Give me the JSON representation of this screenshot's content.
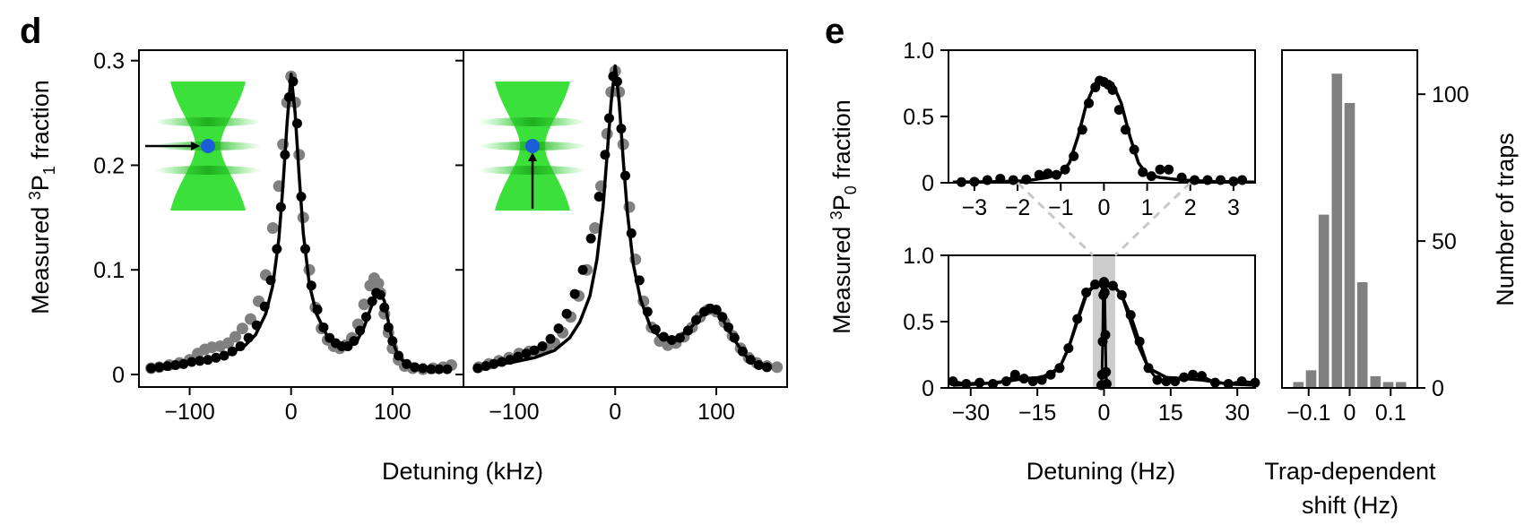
{
  "panels": {
    "d": "d",
    "e": "e"
  },
  "labels": {
    "d_ylabel_pre": "Measured ",
    "d_ylabel_sup": "3",
    "d_ylabel_mid": "P",
    "d_ylabel_sub": "1",
    "d_ylabel_post": " fraction",
    "d_xlabel": "Detuning (kHz)",
    "e_ylabel_pre": "Measured ",
    "e_ylabel_sup": "3",
    "e_ylabel_mid": "P",
    "e_ylabel_sub": "0",
    "e_ylabel_post": " fraction",
    "e_xlabel": "Detuning (Hz)",
    "hist_ylabel": "Number of traps",
    "hist_xlabel_line1": "Trap-dependent",
    "hist_xlabel_line2": "shift (Hz)"
  },
  "colors": {
    "fit_black": "#000000",
    "raw_gray": "#808080",
    "bar_gray": "#808080",
    "beam_green": "#3be03b",
    "atom_blue": "#1a5fd6",
    "dashed": "#c8c8c8",
    "shade": "#cccccc"
  },
  "icons": [
    "tweezer-axial-arrow-icon",
    "tweezer-radial-arrow-icon"
  ],
  "chart_data": [
    {
      "id": "d-left",
      "type": "line",
      "xlim": [
        -150,
        170
      ],
      "ylim": [
        -0.012,
        0.31
      ],
      "xticks": [
        "−100",
        "0",
        "100"
      ],
      "xtick_values": [
        -100,
        0,
        100
      ],
      "yticks": [
        "0",
        "0.1",
        "0.2",
        "0.3"
      ],
      "ytick_values": [
        0,
        0.1,
        0.2,
        0.3
      ],
      "series": [
        {
          "role": "raw-gray",
          "x": [
            -138,
            -130,
            -120,
            -110,
            -100,
            -92,
            -85,
            -78,
            -70,
            -62,
            -55,
            -48,
            -40,
            -32,
            -25,
            -18,
            -12,
            -8,
            -4,
            0,
            4,
            8,
            12,
            18,
            24,
            30,
            36,
            42,
            48,
            54,
            60,
            66,
            72,
            78,
            82,
            86,
            88,
            92,
            96,
            100,
            106,
            112,
            120,
            130,
            140,
            150,
            158
          ],
          "y": [
            0.006,
            0.007,
            0.009,
            0.011,
            0.014,
            0.02,
            0.024,
            0.026,
            0.027,
            0.03,
            0.036,
            0.044,
            0.053,
            0.07,
            0.095,
            0.14,
            0.18,
            0.22,
            0.26,
            0.285,
            0.26,
            0.21,
            0.15,
            0.1,
            0.064,
            0.044,
            0.033,
            0.027,
            0.025,
            0.028,
            0.035,
            0.048,
            0.067,
            0.085,
            0.092,
            0.087,
            0.078,
            0.058,
            0.04,
            0.025,
            0.014,
            0.008,
            0.006,
            0.005,
            0.006,
            0.007,
            0.009
          ]
        },
        {
          "role": "fit-black",
          "x": [
            -140,
            -120,
            -100,
            -80,
            -60,
            -45,
            -35,
            -25,
            -18,
            -12,
            -8,
            -4,
            0,
            4,
            8,
            12,
            18,
            25,
            35,
            45,
            55,
            65,
            72,
            78,
            84,
            88,
            92,
            96,
            100,
            106,
            115,
            125,
            140,
            155
          ],
          "y": [
            0.006,
            0.008,
            0.011,
            0.014,
            0.02,
            0.028,
            0.038,
            0.058,
            0.085,
            0.13,
            0.18,
            0.24,
            0.287,
            0.25,
            0.19,
            0.135,
            0.086,
            0.058,
            0.038,
            0.03,
            0.027,
            0.032,
            0.045,
            0.062,
            0.076,
            0.078,
            0.07,
            0.05,
            0.032,
            0.017,
            0.009,
            0.006,
            0.005,
            0.005
          ]
        },
        {
          "role": "points-black",
          "x": [
            -138,
            -130,
            -122,
            -114,
            -106,
            -98,
            -90,
            -82,
            -74,
            -66,
            -58,
            -50,
            -42,
            -34,
            -26,
            -20,
            -14,
            -10,
            -6,
            -2,
            2,
            6,
            10,
            14,
            20,
            26,
            32,
            38,
            44,
            50,
            56,
            62,
            68,
            74,
            80,
            84,
            88,
            92,
            96,
            100,
            106,
            114,
            122,
            130,
            138,
            146,
            154
          ],
          "y": [
            0.006,
            0.007,
            0.008,
            0.009,
            0.01,
            0.012,
            0.013,
            0.014,
            0.016,
            0.018,
            0.022,
            0.027,
            0.035,
            0.047,
            0.065,
            0.09,
            0.12,
            0.16,
            0.21,
            0.265,
            0.28,
            0.24,
            0.17,
            0.12,
            0.085,
            0.062,
            0.045,
            0.035,
            0.03,
            0.027,
            0.027,
            0.032,
            0.042,
            0.055,
            0.07,
            0.078,
            0.076,
            0.064,
            0.045,
            0.032,
            0.018,
            0.01,
            0.007,
            0.006,
            0.005,
            0.005,
            0.005
          ]
        }
      ]
    },
    {
      "id": "d-right",
      "type": "line",
      "xlim": [
        -150,
        170
      ],
      "ylim": [
        -0.012,
        0.31
      ],
      "xticks": [
        "−100",
        "0",
        "100"
      ],
      "xtick_values": [
        -100,
        0,
        100
      ],
      "series": [
        {
          "role": "raw-gray",
          "x": [
            -135,
            -125,
            -115,
            -105,
            -95,
            -85,
            -75,
            -68,
            -60,
            -52,
            -44,
            -36,
            -28,
            -20,
            -14,
            -8,
            -4,
            0,
            4,
            8,
            14,
            20,
            28,
            36,
            44,
            52,
            60,
            68,
            76,
            84,
            92,
            100,
            108,
            116,
            124,
            132,
            140,
            150,
            160
          ],
          "y": [
            0.007,
            0.01,
            0.013,
            0.016,
            0.02,
            0.022,
            0.022,
            0.025,
            0.03,
            0.04,
            0.055,
            0.075,
            0.1,
            0.14,
            0.18,
            0.23,
            0.27,
            0.29,
            0.27,
            0.22,
            0.16,
            0.11,
            0.07,
            0.045,
            0.032,
            0.028,
            0.03,
            0.036,
            0.045,
            0.055,
            0.062,
            0.06,
            0.05,
            0.037,
            0.025,
            0.016,
            0.011,
            0.008,
            0.007
          ]
        },
        {
          "role": "fit-black",
          "x": [
            -140,
            -120,
            -100,
            -80,
            -60,
            -45,
            -35,
            -25,
            -18,
            -12,
            -8,
            -4,
            0,
            4,
            8,
            12,
            18,
            25,
            35,
            45,
            55,
            65,
            75,
            85,
            92,
            98,
            105,
            112,
            120,
            130,
            140,
            155
          ],
          "y": [
            0.006,
            0.009,
            0.012,
            0.016,
            0.023,
            0.035,
            0.05,
            0.075,
            0.11,
            0.16,
            0.21,
            0.26,
            0.295,
            0.26,
            0.205,
            0.155,
            0.105,
            0.072,
            0.045,
            0.035,
            0.033,
            0.037,
            0.045,
            0.056,
            0.062,
            0.062,
            0.055,
            0.043,
            0.03,
            0.017,
            0.01,
            0.007
          ]
        },
        {
          "role": "points-black",
          "x": [
            -136,
            -128,
            -120,
            -112,
            -104,
            -96,
            -88,
            -80,
            -72,
            -64,
            -56,
            -48,
            -40,
            -32,
            -24,
            -16,
            -10,
            -6,
            -2,
            2,
            6,
            10,
            16,
            24,
            32,
            40,
            48,
            56,
            64,
            72,
            80,
            88,
            94,
            100,
            106,
            112,
            118,
            126,
            134,
            142,
            150
          ],
          "y": [
            0.006,
            0.008,
            0.01,
            0.012,
            0.014,
            0.017,
            0.02,
            0.023,
            0.027,
            0.034,
            0.044,
            0.058,
            0.077,
            0.1,
            0.13,
            0.17,
            0.21,
            0.245,
            0.285,
            0.28,
            0.235,
            0.19,
            0.135,
            0.09,
            0.06,
            0.043,
            0.036,
            0.033,
            0.035,
            0.042,
            0.052,
            0.06,
            0.063,
            0.062,
            0.055,
            0.045,
            0.035,
            0.022,
            0.014,
            0.009,
            0.007
          ]
        }
      ]
    },
    {
      "id": "e-top",
      "type": "line",
      "xlim": [
        -3.6,
        3.5
      ],
      "ylim": [
        0,
        1.0
      ],
      "xticks": [
        "−3",
        "−2",
        "−1",
        "0",
        "1",
        "2",
        "3"
      ],
      "xtick_values": [
        -3,
        -2,
        -1,
        0,
        1,
        2,
        3
      ],
      "yticks": [
        "0",
        "0.5",
        "1.0"
      ],
      "ytick_values": [
        0,
        0.5,
        1.0
      ],
      "series": [
        {
          "role": "fit-black",
          "x": [
            -3.5,
            -2.5,
            -1.8,
            -1.3,
            -1.0,
            -0.8,
            -0.6,
            -0.4,
            -0.2,
            0,
            0.2,
            0.4,
            0.6,
            0.8,
            1.0,
            1.3,
            1.8,
            2.5,
            3.5
          ],
          "y": [
            0.005,
            0.008,
            0.015,
            0.04,
            0.07,
            0.15,
            0.35,
            0.6,
            0.75,
            0.77,
            0.75,
            0.6,
            0.35,
            0.15,
            0.06,
            0.04,
            0.02,
            0.01,
            0.005
          ]
        },
        {
          "role": "points-black",
          "x": [
            -3.3,
            -3.0,
            -2.7,
            -2.4,
            -2.1,
            -1.8,
            -1.5,
            -1.3,
            -1.1,
            -0.9,
            -0.7,
            -0.5,
            -0.35,
            -0.2,
            -0.1,
            0,
            0.1,
            0.2,
            0.35,
            0.5,
            0.7,
            0.9,
            1.1,
            1.3,
            1.5,
            1.8,
            2.1,
            2.4,
            2.7,
            3.0,
            3.2
          ],
          "y": [
            0.005,
            0.008,
            0.02,
            0.03,
            0.02,
            0.025,
            0.06,
            0.07,
            0.06,
            0.1,
            0.2,
            0.4,
            0.6,
            0.72,
            0.77,
            0.76,
            0.74,
            0.7,
            0.55,
            0.4,
            0.25,
            0.08,
            0.05,
            0.1,
            0.1,
            0.04,
            0.02,
            0.02,
            0.02,
            0.01,
            0.02
          ]
        }
      ]
    },
    {
      "id": "e-bottom",
      "type": "line",
      "xlim": [
        -35,
        34
      ],
      "ylim": [
        0,
        1.0
      ],
      "xticks": [
        "−30",
        "−15",
        "0",
        "15",
        "30"
      ],
      "xtick_values": [
        -30,
        -15,
        0,
        15,
        30
      ],
      "yticks": [
        "0",
        "0.5",
        "1.0"
      ],
      "ytick_values": [
        0,
        0.5,
        1.0
      ],
      "series": [
        {
          "role": "fit-broad",
          "x": [
            -34,
            -28,
            -22,
            -18,
            -14,
            -10,
            -8,
            -6,
            -4,
            -2,
            0,
            2,
            4,
            6,
            8,
            10,
            14,
            18,
            22,
            28,
            34
          ],
          "y": [
            0.02,
            0.03,
            0.05,
            0.07,
            0.08,
            0.15,
            0.3,
            0.5,
            0.7,
            0.78,
            0.8,
            0.78,
            0.7,
            0.5,
            0.3,
            0.15,
            0.08,
            0.07,
            0.06,
            0.03,
            0.02
          ]
        },
        {
          "role": "points-broad",
          "x": [
            -34,
            -31,
            -28,
            -25,
            -22,
            -20,
            -18,
            -16,
            -14,
            -12,
            -10,
            -8,
            -6,
            -4,
            -2,
            0,
            2,
            4,
            6,
            8,
            10,
            12,
            14,
            16,
            18,
            20,
            22,
            25,
            28,
            31,
            34
          ],
          "y": [
            0.05,
            0.03,
            0.04,
            0.03,
            0.05,
            0.1,
            0.07,
            0.05,
            0.06,
            0.1,
            0.15,
            0.3,
            0.52,
            0.72,
            0.78,
            0.8,
            0.77,
            0.7,
            0.55,
            0.35,
            0.15,
            0.06,
            0.05,
            0.05,
            0.08,
            0.1,
            0.09,
            0.04,
            0.03,
            0.05,
            0.04
          ]
        },
        {
          "role": "points-narrow",
          "x": [
            -0.6,
            -0.45,
            -0.3,
            -0.15,
            0,
            0.15,
            0.3,
            0.45,
            0.6
          ],
          "y": [
            0.02,
            0.1,
            0.35,
            0.7,
            0.78,
            0.72,
            0.4,
            0.12,
            0.03
          ]
        }
      ],
      "shaded_x": [
        -2.5,
        2.5
      ]
    },
    {
      "id": "hist",
      "type": "bar",
      "xlim": [
        -0.165,
        0.165
      ],
      "ylim": [
        0,
        115
      ],
      "xticks": [
        "−0.1",
        "0",
        "0.1"
      ],
      "xtick_values": [
        -0.1,
        0,
        0.1
      ],
      "yticks": [
        "0",
        "50",
        "100"
      ],
      "ytick_values": [
        0,
        50,
        100
      ],
      "bin_centers": [
        -0.125,
        -0.094,
        -0.063,
        -0.031,
        0.0,
        0.031,
        0.063,
        0.094,
        0.125
      ],
      "values": [
        2,
        6,
        59,
        107,
        97,
        36,
        4,
        2,
        2
      ]
    }
  ]
}
